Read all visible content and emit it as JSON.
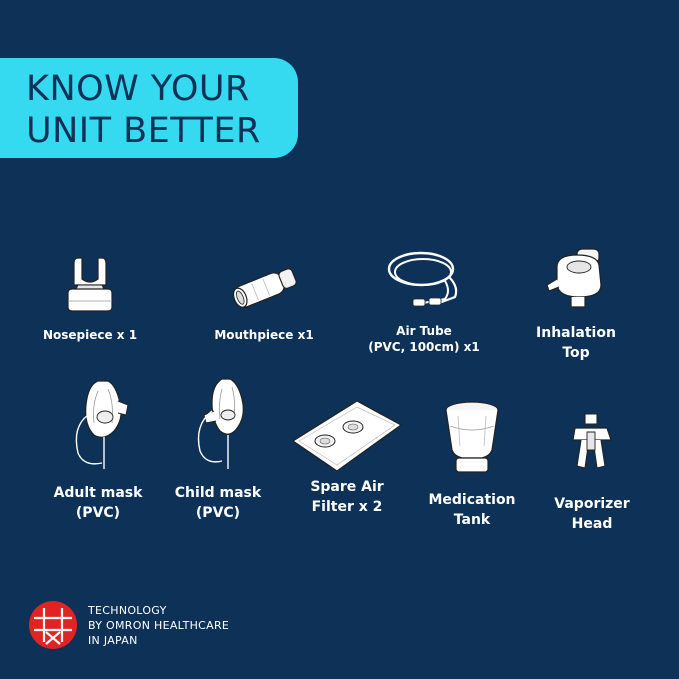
{
  "banner": {
    "line1": "KNOW YOUR",
    "line2": "UNIT BETTER"
  },
  "items": [
    {
      "id": "nosepiece",
      "lines": [
        "Nosepiece x 1"
      ],
      "icon": "nosepiece-icon"
    },
    {
      "id": "mouthpiece",
      "lines": [
        "Mouthpiece x1"
      ],
      "icon": "mouthpiece-icon"
    },
    {
      "id": "air-tube",
      "lines": [
        "Air Tube",
        "(PVC, 100cm) x1"
      ],
      "icon": "air-tube-icon"
    },
    {
      "id": "inhalation-top",
      "lines": [
        "Inhalation",
        "Top"
      ],
      "icon": "inhalation-top-icon"
    },
    {
      "id": "adult-mask",
      "lines": [
        "Adult mask",
        "(PVC)"
      ],
      "icon": "adult-mask-icon"
    },
    {
      "id": "child-mask",
      "lines": [
        "Child mask",
        "(PVC)"
      ],
      "icon": "child-mask-icon"
    },
    {
      "id": "spare-air-filter",
      "lines": [
        "Spare Air",
        "Filter x 2"
      ],
      "icon": "air-filter-icon"
    },
    {
      "id": "medication-tank",
      "lines": [
        "Medication",
        "Tank"
      ],
      "icon": "medication-tank-icon"
    },
    {
      "id": "vaporizer-head",
      "lines": [
        "Vaporizer",
        "Head"
      ],
      "icon": "vaporizer-head-icon"
    }
  ],
  "footer": {
    "line1": "TECHNOLOGY",
    "line2": "BY OMRON HEALTHCARE",
    "line3": "IN JAPAN",
    "logo": "omron-japan-logo-icon"
  },
  "colors": {
    "background": "#0d3157",
    "banner": "#35d9f0",
    "logo_red": "#e02424"
  }
}
